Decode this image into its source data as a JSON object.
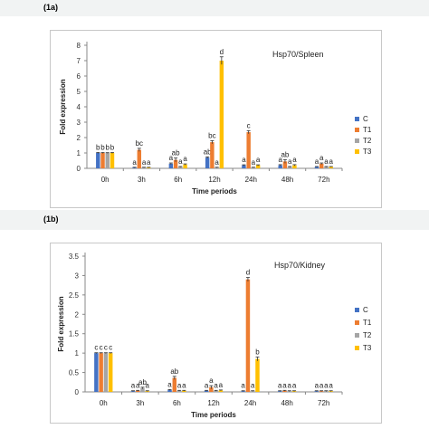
{
  "panels": [
    {
      "label": "(1a)"
    },
    {
      "label": "(1b)"
    }
  ],
  "series_colors": {
    "C": "#4472c4",
    "T1": "#ed7d31",
    "T2": "#a5a5a5",
    "T3": "#ffc000"
  },
  "chart_data": [
    {
      "type": "bar",
      "title": "Hsp70/Spleen",
      "xlabel": "Time periods",
      "ylabel": "Fold expression",
      "ylim": [
        0,
        8
      ],
      "yticks": [
        "0",
        "1",
        "2",
        "3",
        "4",
        "5",
        "6",
        "7",
        "8"
      ],
      "grid": false,
      "legend_position": "right",
      "categories": [
        "0h",
        "3h",
        "6h",
        "12h",
        "24h",
        "48h",
        "72h"
      ],
      "series": [
        {
          "name": "C",
          "values": [
            1.0,
            0.05,
            0.3,
            0.7,
            0.2,
            0.2,
            0.1
          ],
          "errors": [
            0.03,
            0.02,
            0.05,
            0.05,
            0.03,
            0.04,
            0.02
          ],
          "labels": [
            "b",
            "a",
            "a",
            "ab",
            "a",
            "a",
            "a"
          ]
        },
        {
          "name": "T1",
          "values": [
            1.0,
            1.2,
            0.55,
            1.7,
            2.35,
            0.45,
            0.3
          ],
          "errors": [
            0.03,
            0.1,
            0.12,
            0.1,
            0.1,
            0.12,
            0.05
          ],
          "labels": [
            "b",
            "bc",
            "ab",
            "bc",
            "c",
            "ab",
            "a"
          ]
        },
        {
          "name": "T2",
          "values": [
            1.0,
            0.05,
            0.1,
            0.05,
            0.05,
            0.1,
            0.1
          ],
          "errors": [
            0.02,
            0.02,
            0.02,
            0.02,
            0.02,
            0.02,
            0.02
          ],
          "labels": [
            "b",
            "a",
            "a",
            "a",
            "a",
            "a",
            "a"
          ]
        },
        {
          "name": "T3",
          "values": [
            1.0,
            0.05,
            0.25,
            7.0,
            0.2,
            0.2,
            0.1
          ],
          "errors": [
            0.03,
            0.02,
            0.04,
            0.25,
            0.03,
            0.04,
            0.02
          ],
          "labels": [
            "b",
            "a",
            "a",
            "d",
            "a",
            "a",
            "a"
          ]
        }
      ]
    },
    {
      "type": "bar",
      "title": "Hsp70/Kidney",
      "xlabel": "Time periods",
      "ylabel": "Fold expression",
      "ylim": [
        0,
        3.5
      ],
      "yticks": [
        "0",
        "0.5",
        "1",
        "1.5",
        "2",
        "2.5",
        "3",
        "3.5"
      ],
      "grid": false,
      "legend_position": "right",
      "categories": [
        "0h",
        "3h",
        "6h",
        "12h",
        "24h",
        "48h",
        "72h"
      ],
      "series": [
        {
          "name": "C",
          "values": [
            1.0,
            0.02,
            0.05,
            0.03,
            0.02,
            0.02,
            0.02
          ],
          "errors": [
            0.01,
            0.01,
            0.01,
            0.01,
            0.01,
            0.01,
            0.01
          ],
          "labels": [
            "c",
            "a",
            "a",
            "a",
            "a",
            "a",
            "a"
          ]
        },
        {
          "name": "T1",
          "values": [
            1.0,
            0.03,
            0.36,
            0.12,
            2.9,
            0.03,
            0.02
          ],
          "errors": [
            0.01,
            0.01,
            0.04,
            0.04,
            0.05,
            0.01,
            0.01
          ],
          "labels": [
            "c",
            "a",
            "ab",
            "a",
            "d",
            "a",
            "a"
          ]
        },
        {
          "name": "T2",
          "values": [
            1.0,
            0.1,
            0.03,
            0.03,
            0.02,
            0.02,
            0.02
          ],
          "errors": [
            0.01,
            0.02,
            0.01,
            0.01,
            0.01,
            0.01,
            0.01
          ],
          "labels": [
            "c",
            "ab",
            "a",
            "a",
            "a",
            "a",
            "a"
          ]
        },
        {
          "name": "T3",
          "values": [
            1.0,
            0.02,
            0.03,
            0.04,
            0.85,
            0.02,
            0.02
          ],
          "errors": [
            0.01,
            0.01,
            0.01,
            0.01,
            0.05,
            0.01,
            0.01
          ],
          "labels": [
            "c",
            "a",
            "a",
            "a",
            "b",
            "a",
            "a"
          ]
        }
      ]
    }
  ]
}
